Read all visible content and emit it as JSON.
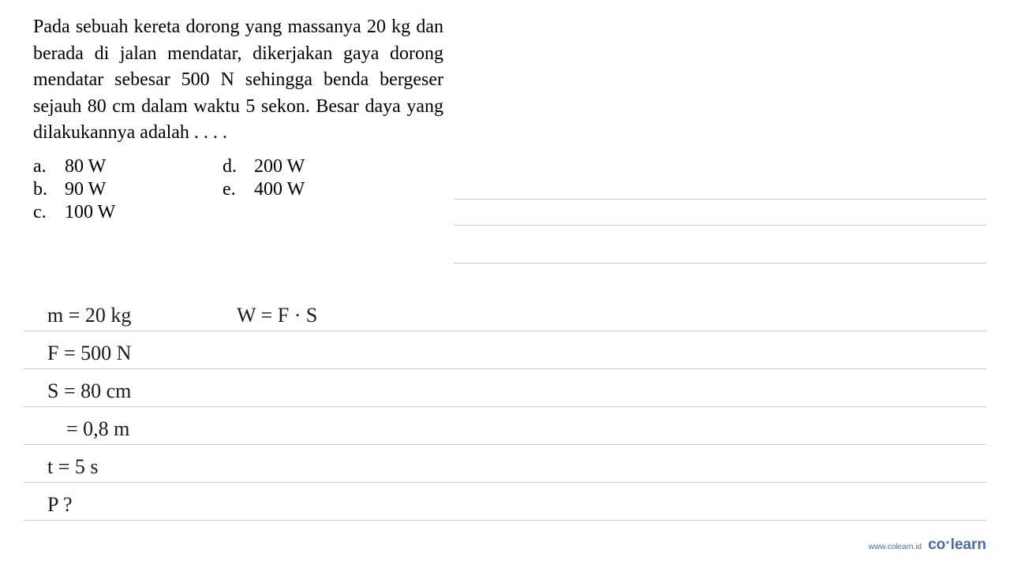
{
  "question": {
    "text": "Pada sebuah kereta dorong yang massanya 20 kg dan berada di jalan mendatar, dikerjakan gaya dorong mendatar sebesar 500 N sehingga benda bergeser sejauh 80 cm dalam waktu 5 sekon. Besar daya yang dilakukannya adalah . . . .",
    "options": {
      "a": "80 W",
      "b": "90 W",
      "c": "100 W",
      "d": "200 W",
      "e": "400 W"
    }
  },
  "handwritten": {
    "line1_left": "m = 20 kg",
    "line1_right": "W = F · S",
    "line2": "F = 500 N",
    "line3": "S = 80 cm",
    "line4": "= 0,8 m",
    "line5": "t = 5 s",
    "line6": "P ?"
  },
  "footer": {
    "url": "www.colearn.id",
    "logo_part1": "co",
    "logo_dot": "·",
    "logo_part2": "learn"
  },
  "style": {
    "background_color": "#ffffff",
    "text_color": "#000000",
    "line_color": "#c8d0d8",
    "brand_color": "#4a6ba8",
    "question_fontsize": 24,
    "handwriting_fontsize": 26,
    "line_height": 48
  }
}
